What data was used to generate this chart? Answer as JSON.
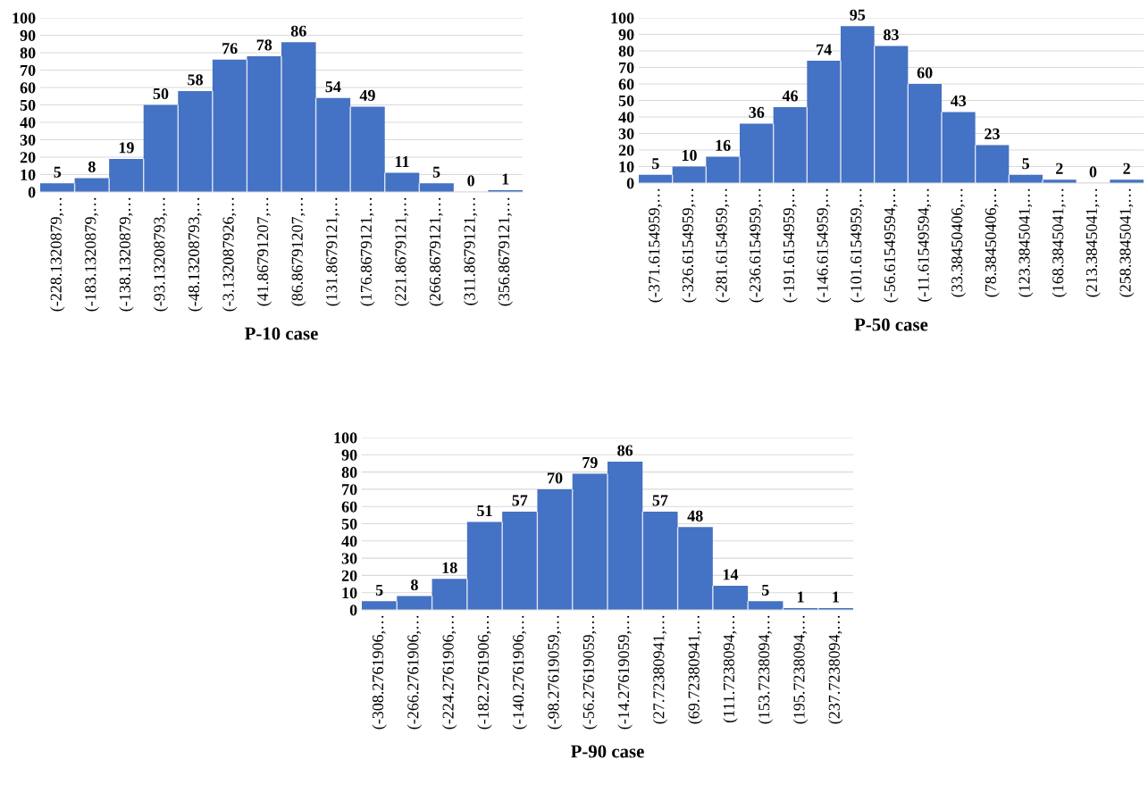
{
  "chart_data": [
    {
      "type": "bar",
      "title": "P-10 case",
      "categories": [
        "(-228.1320879,…",
        "(-183.1320879,…",
        "(-138.1320879,…",
        "(-93.13208793,…",
        "(-48.13208793,…",
        "(-3.132087926,…",
        "(41.86791207,…",
        "(86.86791207,…",
        "(131.8679121,…",
        "(176.8679121,…",
        "(221.8679121,…",
        "(266.8679121,…",
        "(311.8679121,…",
        "(356.8679121,…"
      ],
      "values": [
        5,
        8,
        19,
        50,
        58,
        76,
        78,
        86,
        54,
        49,
        11,
        5,
        0,
        1
      ],
      "color": "#4472c4",
      "ylim": [
        0,
        100
      ],
      "yticks": [
        0,
        10,
        20,
        30,
        40,
        50,
        60,
        70,
        80,
        90,
        100
      ],
      "grid": "y",
      "data_labels": true
    },
    {
      "type": "bar",
      "title": "P-50 case",
      "categories": [
        "(-371.6154959,…",
        "(-326.6154959,…",
        "(-281.6154959,…",
        "(-236.6154959,…",
        "(-191.6154959,…",
        "(-146.6154959,…",
        "(-101.6154959,…",
        "(-56.61549594,…",
        "(-11.61549594,…",
        "(33.38450406,…",
        "(78.38450406,…",
        "(123.3845041,…",
        "(168.3845041,…",
        "(213.3845041,…",
        "(258.3845041,…"
      ],
      "values": [
        5,
        10,
        16,
        36,
        46,
        74,
        95,
        83,
        60,
        43,
        23,
        5,
        2,
        0,
        2
      ],
      "color": "#4472c4",
      "ylim": [
        0,
        100
      ],
      "yticks": [
        0,
        10,
        20,
        30,
        40,
        50,
        60,
        70,
        80,
        90,
        100
      ],
      "grid": "y",
      "data_labels": true
    },
    {
      "type": "bar",
      "title": "P-90 case",
      "categories": [
        "(-308.2761906,…",
        "(-266.2761906,…",
        "(-224.2761906,…",
        "(-182.2761906,…",
        "(-140.2761906,…",
        "(-98.27619059,…",
        "(-56.27619059,…",
        "(-14.27619059,…",
        "(27.72380941,…",
        "(69.72380941,…",
        "(111.7238094,…",
        "(153.7238094,…",
        "(195.7238094,…",
        "(237.7238094,…"
      ],
      "values": [
        5,
        8,
        18,
        51,
        57,
        70,
        79,
        86,
        57,
        48,
        14,
        5,
        1,
        1
      ],
      "color": "#4472c4",
      "ylim": [
        0,
        100
      ],
      "yticks": [
        0,
        10,
        20,
        30,
        40,
        50,
        60,
        70,
        80,
        90,
        100
      ],
      "grid": "y",
      "data_labels": true
    }
  ]
}
